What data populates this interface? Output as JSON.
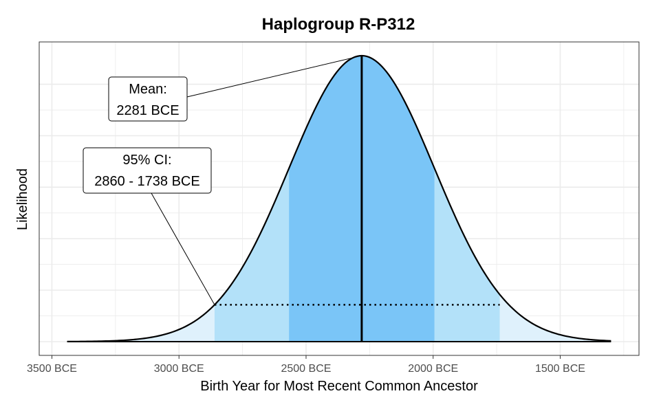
{
  "chart_data": {
    "type": "area",
    "title": "Haplogroup R-P312",
    "xlabel": "Birth Year for Most Recent Common Ancestor",
    "ylabel": "Likelihood",
    "x_unit": "BCE",
    "x_axis_reversed": true,
    "xlim": [
      3550,
      1190
    ],
    "ylim": [
      0,
      1.0
    ],
    "x_ticks": [
      3500,
      3000,
      2500,
      2000,
      1500
    ],
    "x_tick_labels": [
      "3500 BCE",
      "3000 BCE",
      "2500 BCE",
      "2000 BCE",
      "1500 BCE"
    ],
    "grid": true,
    "legend": "none",
    "distribution": {
      "mean": 2281,
      "sd": 286,
      "x_min": 3440,
      "x_max": 1300
    },
    "bands": [
      {
        "name": "outer",
        "from": 3440,
        "to": 1300,
        "color": "#dff1fc"
      },
      {
        "name": "ci95",
        "from": 2860,
        "to": 1738,
        "color": "#b3e1f9"
      },
      {
        "name": "ci68",
        "from": 2567,
        "to": 1995,
        "color": "#7ac5f7"
      }
    ],
    "curve_color": "#000000",
    "mean_line": {
      "x": 2281,
      "color": "#000000"
    },
    "ci_line": {
      "from": 2860,
      "to": 1738,
      "style": "dotted"
    },
    "annotations": [
      {
        "id": "mean",
        "lines": [
          "Mean:",
          "2281 BCE"
        ]
      },
      {
        "id": "ci",
        "lines": [
          "95% CI:",
          "2860 - 1738 BCE"
        ]
      }
    ]
  }
}
